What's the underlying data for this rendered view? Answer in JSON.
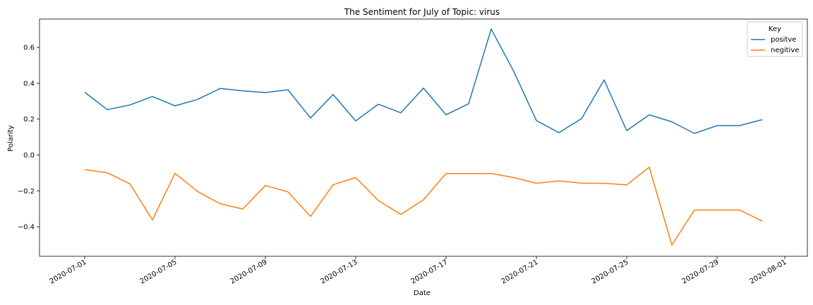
{
  "chart_data": {
    "type": "line",
    "title": "The Sentiment for July of Topic: virus",
    "xlabel": "Date",
    "ylabel": "Polarity",
    "x": [
      "2020-07-01",
      "2020-07-02",
      "2020-07-03",
      "2020-07-04",
      "2020-07-05",
      "2020-07-06",
      "2020-07-07",
      "2020-07-08",
      "2020-07-09",
      "2020-07-10",
      "2020-07-11",
      "2020-07-12",
      "2020-07-13",
      "2020-07-14",
      "2020-07-15",
      "2020-07-16",
      "2020-07-17",
      "2020-07-18",
      "2020-07-19",
      "2020-07-20",
      "2020-07-21",
      "2020-07-22",
      "2020-07-23",
      "2020-07-24",
      "2020-07-25",
      "2020-07-26",
      "2020-07-27",
      "2020-07-28",
      "2020-07-29",
      "2020-07-30",
      "2020-07-31"
    ],
    "xlim": [
      "2020-06-29",
      "2020-08-02"
    ],
    "ylim": [
      -0.565,
      0.758
    ],
    "xticks": [
      "2020-07-01",
      "2020-07-05",
      "2020-07-09",
      "2020-07-13",
      "2020-07-17",
      "2020-07-21",
      "2020-07-25",
      "2020-07-29",
      "2020-08-01"
    ],
    "yticks": [
      "0.6",
      "0.4",
      "0.2",
      "0.0",
      "−0.2",
      "−0.4"
    ],
    "grid": false,
    "legend": {
      "title": "Key",
      "position": "top-right"
    },
    "series": [
      {
        "name": "positve",
        "color": "#1f77b4",
        "values": [
          0.35,
          0.253,
          0.279,
          0.326,
          0.274,
          0.31,
          0.371,
          0.358,
          0.348,
          0.364,
          0.206,
          0.337,
          0.19,
          0.283,
          0.235,
          0.373,
          0.224,
          0.286,
          0.702,
          0.466,
          0.192,
          0.124,
          0.203,
          0.418,
          0.136,
          0.224,
          0.185,
          0.12,
          0.164,
          0.164,
          0.197
        ]
      },
      {
        "name": "negitive",
        "color": "#ff7f0e",
        "values": [
          -0.081,
          -0.099,
          -0.161,
          -0.362,
          -0.102,
          -0.204,
          -0.272,
          -0.301,
          -0.17,
          -0.206,
          -0.343,
          -0.166,
          -0.126,
          -0.254,
          -0.332,
          -0.25,
          -0.103,
          -0.103,
          -0.103,
          -0.126,
          -0.158,
          -0.145,
          -0.157,
          -0.158,
          -0.167,
          -0.068,
          -0.502,
          -0.307,
          -0.307,
          -0.307,
          -0.369
        ]
      }
    ]
  }
}
